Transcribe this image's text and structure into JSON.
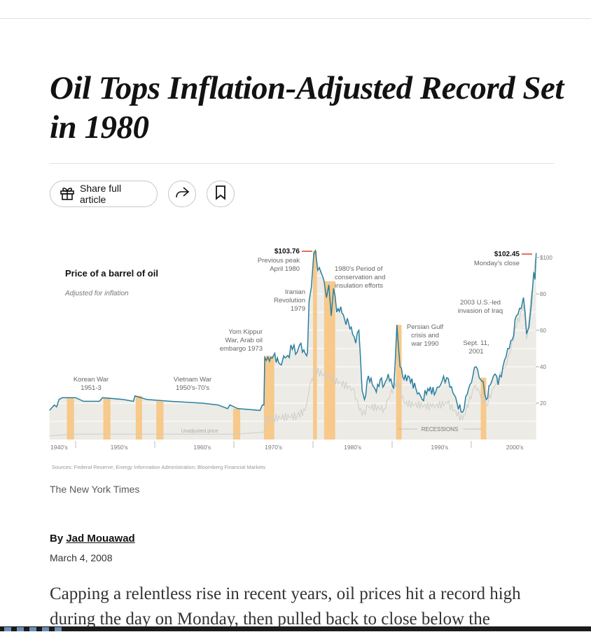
{
  "article": {
    "title": "Oil Tops Inflation-Adjusted Record Set in 1980",
    "share_full_label": "Share full article",
    "credit": "The New York Times",
    "byline_prefix": "By ",
    "author": "Jad Mouawad",
    "date": "March 4, 2008",
    "body": "Capping a relentless rise in recent years, oil prices hit a record high during the day on Monday, then pulled back to close below the"
  },
  "icons": {
    "gift": "gift-icon",
    "share": "share-arrow-icon",
    "save": "bookmark-icon"
  },
  "chart_data": {
    "type": "line",
    "title": "Price of a barrel of oil",
    "subtitle": "Adjusted for inflation",
    "source": "Sources: Federal Reserve; Energy Information Administration; Bloomberg Financial Markets",
    "x_tick_labels": [
      "1940's",
      "1950's",
      "1960's",
      "1970's",
      "1980's",
      "1990's",
      "2000's"
    ],
    "y_tick_labels": [
      "$100",
      "80",
      "60",
      "40",
      "20"
    ],
    "ylim": [
      0,
      105
    ],
    "xlim": [
      1946.7,
      2008.2
    ],
    "colors": {
      "adjusted": "#2a7fa0",
      "unadjusted": "#cfcdc6",
      "recession": "#f7c98a",
      "area": "#ecebe6",
      "peak_marker": "#e0735a"
    },
    "series": [
      {
        "name": "",
        "key": "adjusted",
        "points": [
          [
            1946.7,
            16
          ],
          [
            1947.3,
            19
          ],
          [
            1947.6,
            18
          ],
          [
            1947.9,
            22
          ],
          [
            1948.3,
            23
          ],
          [
            1950,
            23
          ],
          [
            1951,
            21
          ],
          [
            1953,
            21
          ],
          [
            1953.4,
            23
          ],
          [
            1956,
            22
          ],
          [
            1957.3,
            21
          ],
          [
            1957.5,
            24
          ],
          [
            1959,
            22
          ],
          [
            1962,
            21
          ],
          [
            1966,
            20
          ],
          [
            1968,
            19
          ],
          [
            1969.2,
            17
          ],
          [
            1969.5,
            19
          ],
          [
            1970.5,
            17
          ],
          [
            1973.3,
            16
          ],
          [
            1973.6,
            19
          ],
          [
            1973.8,
            19
          ],
          [
            1973.9,
            45
          ],
          [
            1974.5,
            43
          ],
          [
            1975,
            46
          ],
          [
            1976,
            41
          ],
          [
            1976.3,
            46
          ],
          [
            1977,
            45
          ],
          [
            1977.2,
            52
          ],
          [
            1978,
            48
          ],
          [
            1978.3,
            52
          ],
          [
            1979.2,
            46
          ],
          [
            1979.3,
            48
          ],
          [
            1979.5,
            76
          ],
          [
            1979.8,
            84
          ],
          [
            1980.1,
            102
          ],
          [
            1980.3,
            103.76
          ],
          [
            1980.6,
            93
          ],
          [
            1981,
            92
          ],
          [
            1981.4,
            87
          ],
          [
            1981.7,
            78
          ],
          [
            1982,
            85
          ],
          [
            1982.3,
            68
          ],
          [
            1982.6,
            83
          ],
          [
            1983,
            70
          ],
          [
            1983.5,
            73
          ],
          [
            1984,
            66
          ],
          [
            1984.5,
            64
          ],
          [
            1985,
            58
          ],
          [
            1985.4,
            53
          ],
          [
            1985.8,
            60
          ],
          [
            1986.2,
            27
          ],
          [
            1986.5,
            22
          ],
          [
            1987,
            35
          ],
          [
            1987.5,
            30
          ],
          [
            1988,
            26
          ],
          [
            1988.5,
            33
          ],
          [
            1989,
            30
          ],
          [
            1989.5,
            36
          ],
          [
            1990.2,
            28
          ],
          [
            1990.6,
            63
          ],
          [
            1991,
            40
          ],
          [
            1991.5,
            33
          ],
          [
            1992,
            35
          ],
          [
            1993,
            28
          ],
          [
            1993.8,
            22
          ],
          [
            1994.5,
            28
          ],
          [
            1995.5,
            26
          ],
          [
            1996.3,
            32
          ],
          [
            1996.9,
            34
          ],
          [
            1997.5,
            29
          ],
          [
            1998.2,
            20
          ],
          [
            1998.9,
            15
          ],
          [
            1999.5,
            25
          ],
          [
            2000.2,
            35
          ],
          [
            2000.6,
            40
          ],
          [
            2001,
            34
          ],
          [
            2001.5,
            32
          ],
          [
            2001.9,
            22
          ],
          [
            2002.4,
            30
          ],
          [
            2003,
            36
          ],
          [
            2003.4,
            30
          ],
          [
            2004,
            40
          ],
          [
            2004.6,
            50
          ],
          [
            2005.2,
            55
          ],
          [
            2005.7,
            68
          ],
          [
            2006.3,
            72
          ],
          [
            2006.6,
            78
          ],
          [
            2007.0,
            58
          ],
          [
            2007.3,
            62
          ],
          [
            2007.6,
            75
          ],
          [
            2007.9,
            92
          ],
          [
            2008.05,
            88
          ],
          [
            2008.2,
            102.45
          ]
        ]
      },
      {
        "name": "Unadjusted price",
        "key": "unadjusted",
        "points": [
          [
            1946.7,
            2
          ],
          [
            1950,
            3
          ],
          [
            1960,
            3
          ],
          [
            1970,
            3
          ],
          [
            1973.8,
            4
          ],
          [
            1974,
            11
          ],
          [
            1978,
            13
          ],
          [
            1979,
            16
          ],
          [
            1979.8,
            33
          ],
          [
            1980.3,
            38
          ],
          [
            1982,
            34
          ],
          [
            1985,
            28
          ],
          [
            1986.2,
            13
          ],
          [
            1987,
            18
          ],
          [
            1989,
            17
          ],
          [
            1990.6,
            33
          ],
          [
            1991.5,
            20
          ],
          [
            1995,
            18
          ],
          [
            1997,
            20
          ],
          [
            1998.9,
            11
          ],
          [
            2000.5,
            30
          ],
          [
            2001.9,
            19
          ],
          [
            2003,
            30
          ],
          [
            2004.5,
            42
          ],
          [
            2005.7,
            62
          ],
          [
            2006.6,
            74
          ],
          [
            2007.0,
            55
          ],
          [
            2007.9,
            92
          ],
          [
            2008.2,
            102.45
          ]
        ]
      }
    ],
    "recessions_label": "RECESSIONS",
    "recessions": [
      [
        1948.9,
        1949.8
      ],
      [
        1953.5,
        1954.4
      ],
      [
        1957.6,
        1958.4
      ],
      [
        1960.2,
        1961.1
      ],
      [
        1969.9,
        1970.8
      ],
      [
        1973.8,
        1975.1
      ],
      [
        1980.0,
        1980.5
      ],
      [
        1981.4,
        1982.8
      ],
      [
        1990.5,
        1991.2
      ],
      [
        2001.2,
        2001.9
      ]
    ],
    "annotations": [
      {
        "label": "$103.76",
        "lines": [
          "Previous peak",
          "April 1980"
        ]
      },
      {
        "label": "$102.45",
        "lines": [
          "Monday's close"
        ]
      },
      {
        "lines": [
          "Korean War",
          "1951-3"
        ]
      },
      {
        "lines": [
          "Vietnam War",
          "1950's-70's"
        ]
      },
      {
        "lines": [
          "Yom Kippur",
          "War, Arab oil",
          "embargo 1973"
        ]
      },
      {
        "lines": [
          "Iranian",
          "Revolution",
          "1979"
        ]
      },
      {
        "lines": [
          "1980's Period of",
          "conservation and",
          "insulation efforts"
        ]
      },
      {
        "lines": [
          "Persian Gulf",
          "crisis and",
          "war 1990"
        ]
      },
      {
        "lines": [
          "Sept. 11,",
          "2001"
        ]
      },
      {
        "lines": [
          "2003 U.S.-led",
          "invasion of Iraq"
        ]
      }
    ]
  }
}
